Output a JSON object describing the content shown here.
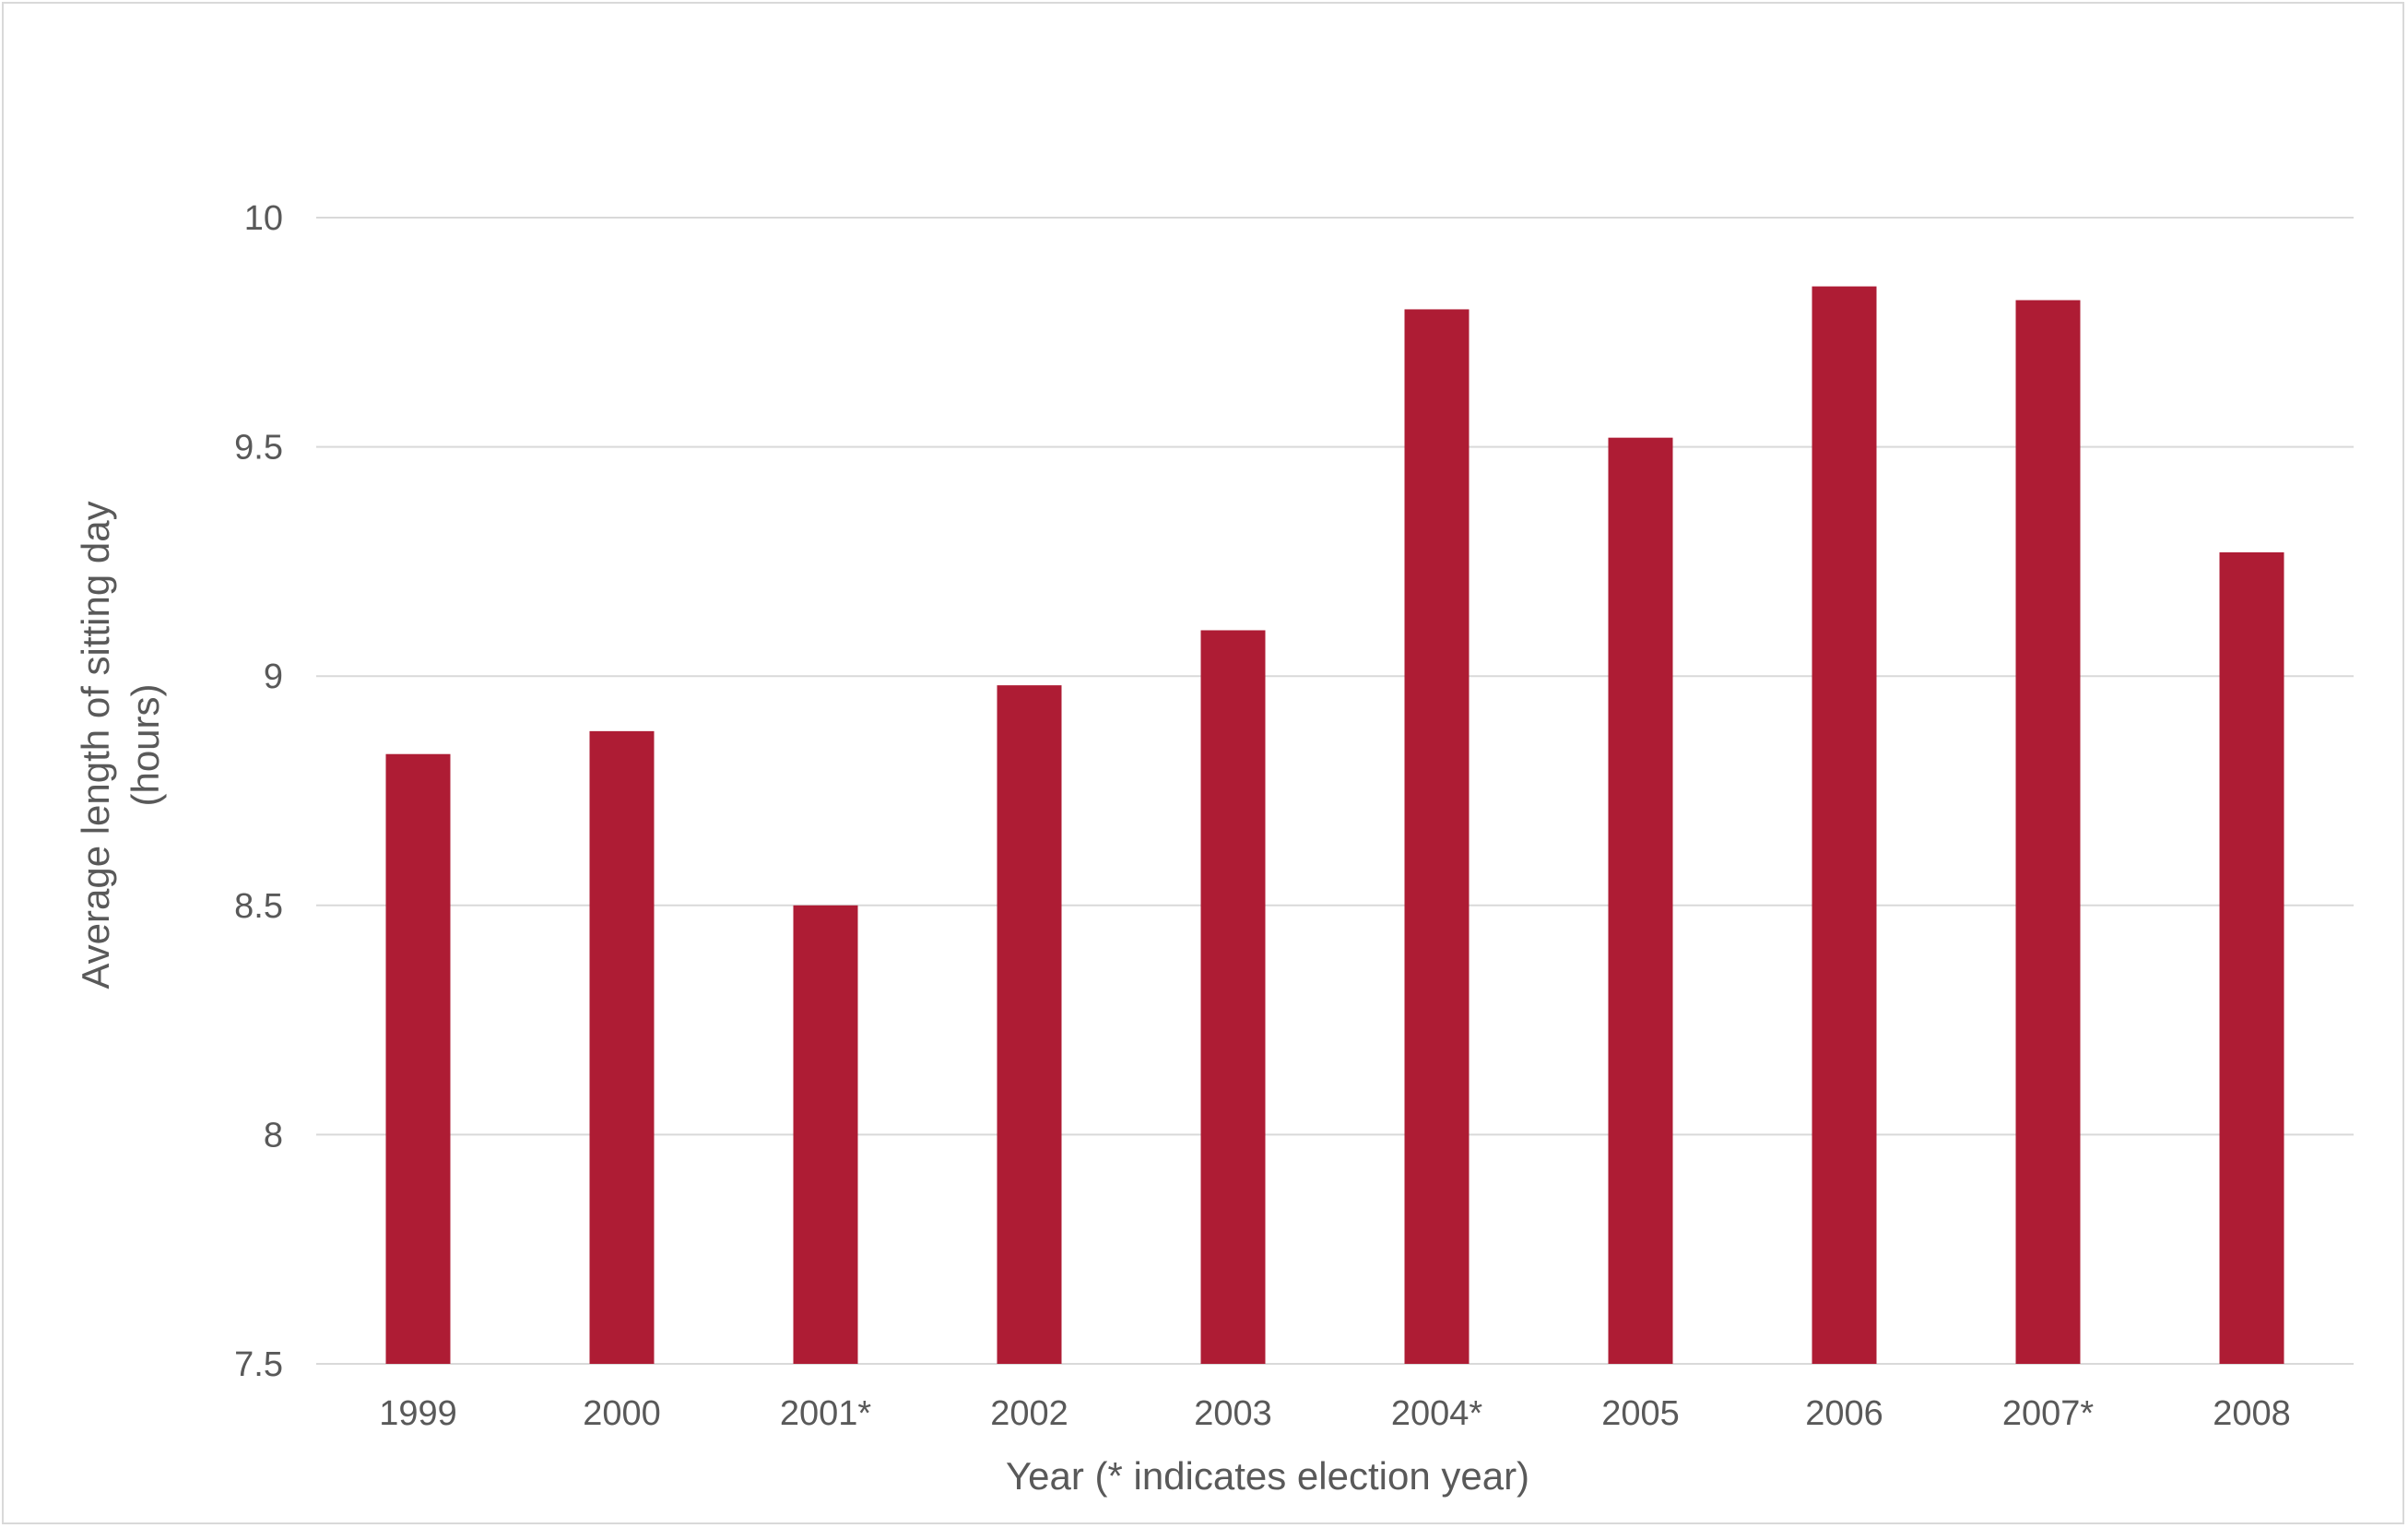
{
  "chart_data": {
    "type": "bar",
    "title": "",
    "xlabel": "Year (* indicates election year)",
    "ylabel": "Average length of sitting day",
    "ylabel_unit": "(hours)",
    "categories": [
      "1999",
      "2000",
      "2001*",
      "2002",
      "2003",
      "2004*",
      "2005",
      "2006",
      "2007*",
      "2008"
    ],
    "values": [
      8.83,
      8.88,
      8.5,
      8.98,
      9.1,
      9.8,
      9.52,
      9.85,
      9.82,
      9.27
    ],
    "ylim": [
      7.5,
      10
    ],
    "yticks": [
      "7.5",
      "8",
      "8.5",
      "9",
      "9.5",
      "10"
    ],
    "grid": true,
    "legend": "none",
    "colors": {
      "bar": "#ae1c34",
      "grid": "#d9d9d9",
      "text": "#595959",
      "border": "#d9d9d9"
    }
  }
}
